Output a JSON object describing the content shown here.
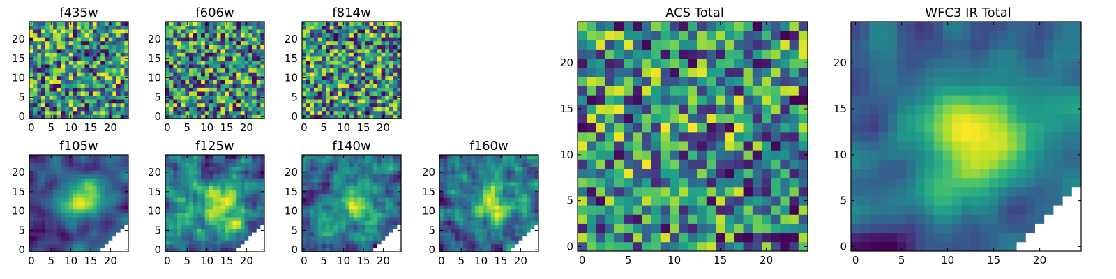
{
  "colors": {
    "colormap": "viridis",
    "masked": "#ffffff",
    "frame": "#000000"
  },
  "chart_data": [
    {
      "type": "heatmap",
      "title": "f435w",
      "colormap": "viridis",
      "size": 25,
      "extent": [
        -0.5,
        24.5
      ],
      "mask": "none",
      "center": [
        12,
        12
      ],
      "smooth": 0.0,
      "xticks": [
        0,
        5,
        10,
        15,
        20
      ],
      "yticks": [
        0,
        5,
        10,
        15,
        20
      ],
      "seed": 11
    },
    {
      "type": "heatmap",
      "title": "f606w",
      "colormap": "viridis",
      "size": 25,
      "extent": [
        -0.5,
        24.5
      ],
      "mask": "none",
      "center": [
        12,
        12
      ],
      "smooth": 0.0,
      "xticks": [
        0,
        5,
        10,
        15,
        20
      ],
      "yticks": [
        0,
        5,
        10,
        15,
        20
      ],
      "seed": 23
    },
    {
      "type": "heatmap",
      "title": "f814w",
      "colormap": "viridis",
      "size": 25,
      "extent": [
        -0.5,
        24.5
      ],
      "mask": "none",
      "center": [
        12,
        12
      ],
      "smooth": 0.0,
      "xticks": [
        0,
        5,
        10,
        15,
        20
      ],
      "yticks": [
        0,
        5,
        10,
        15,
        20
      ],
      "seed": 37
    },
    {
      "type": "heatmap",
      "title": "f105w",
      "colormap": "viridis",
      "size": 25,
      "extent": [
        -0.5,
        24.5
      ],
      "mask": "lower-right",
      "center": [
        13,
        13
      ],
      "smooth": 0.55,
      "xticks": [
        0,
        5,
        10,
        15,
        20
      ],
      "yticks": [
        0,
        5,
        10,
        15,
        20
      ],
      "seed": 41
    },
    {
      "type": "heatmap",
      "title": "f125w",
      "colormap": "viridis",
      "size": 25,
      "extent": [
        -0.5,
        24.5
      ],
      "mask": "lower-right",
      "center": [
        14,
        11
      ],
      "smooth": 0.45,
      "xticks": [
        0,
        5,
        10,
        15,
        20
      ],
      "yticks": [
        0,
        5,
        10,
        15,
        20
      ],
      "seed": 53
    },
    {
      "type": "heatmap",
      "title": "f140w",
      "colormap": "viridis",
      "size": 25,
      "extent": [
        -0.5,
        24.5
      ],
      "mask": "lower-right",
      "center": [
        13,
        12
      ],
      "smooth": 0.35,
      "xticks": [
        0,
        5,
        10,
        15,
        20
      ],
      "yticks": [
        0,
        5,
        10,
        15,
        20
      ],
      "seed": 67
    },
    {
      "type": "heatmap",
      "title": "f160w",
      "colormap": "viridis",
      "size": 25,
      "extent": [
        -0.5,
        24.5
      ],
      "mask": "lower-right",
      "center": [
        13,
        12
      ],
      "smooth": 0.45,
      "xticks": [
        0,
        5,
        10,
        15,
        20
      ],
      "yticks": [
        0,
        5,
        10,
        15,
        20
      ],
      "seed": 79
    },
    {
      "type": "heatmap",
      "title": "ACS Total",
      "colormap": "viridis",
      "size": 25,
      "extent": [
        -0.5,
        24.5
      ],
      "mask": "none",
      "center": [
        10,
        13
      ],
      "smooth": 0.1,
      "xticks": [
        0,
        5,
        10,
        15,
        20
      ],
      "yticks": [
        0,
        5,
        10,
        15,
        20
      ],
      "seed": 83
    },
    {
      "type": "heatmap",
      "title": "WFC3 IR Total",
      "colormap": "viridis",
      "size": 25,
      "extent": [
        -0.5,
        24.5
      ],
      "mask": "lower-right",
      "center": [
        13,
        12
      ],
      "smooth": 0.65,
      "xticks": [
        0,
        5,
        10,
        15,
        20
      ],
      "yticks": [
        0,
        5,
        10,
        15,
        20
      ],
      "seed": 97
    }
  ]
}
